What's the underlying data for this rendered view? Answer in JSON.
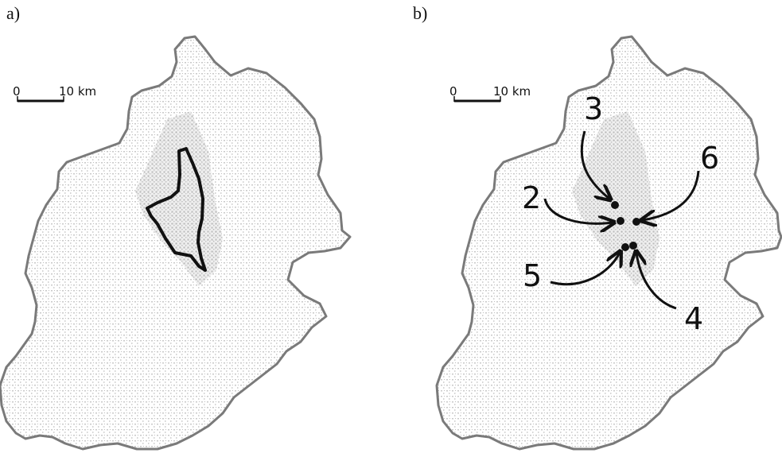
{
  "panels": [
    {
      "label": "a)",
      "scale_start": "0",
      "scale_end": "10 km"
    },
    {
      "label": "b)",
      "scale_start": "0",
      "scale_end": "10 km"
    }
  ],
  "markers": [
    {
      "label": "3"
    },
    {
      "label": "2"
    },
    {
      "label": "6"
    },
    {
      "label": "5"
    },
    {
      "label": "4"
    }
  ]
}
